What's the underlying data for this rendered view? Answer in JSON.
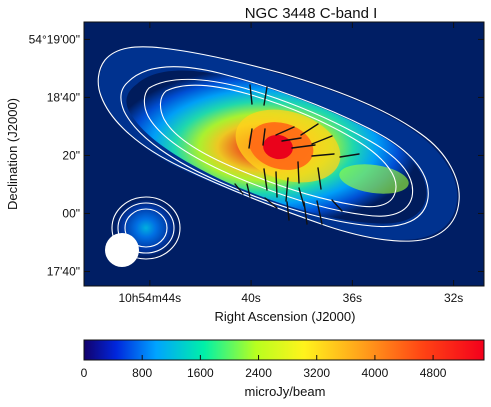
{
  "chart_data": {
    "type": "heatmap",
    "title": "NGC 3448   C-band   I",
    "xlabel": "Right Ascension (J2000)",
    "ylabel": "Declination (J2000)",
    "x_ticks": [
      {
        "label": "10h54m44s",
        "value": 44
      },
      {
        "label": "40s",
        "value": 40
      },
      {
        "label": "36s",
        "value": 36
      },
      {
        "label": "32s",
        "value": 32
      }
    ],
    "y_ticks": [
      {
        "label": "54°19'00\"",
        "value": 60
      },
      {
        "label": "18'40\"",
        "value": 40
      },
      {
        "label": "20\"",
        "value": 20
      },
      {
        "label": "00\"",
        "value": 0
      },
      {
        "label": "17'40\"",
        "value": -20
      }
    ],
    "xlim": [
      46.6,
      30.8
    ],
    "ylim": [
      -25,
      66
    ],
    "colorbar": {
      "label": "microJy/beam",
      "min": 0,
      "max": 5500,
      "ticks": [
        {
          "label": "0",
          "value": 0
        },
        {
          "label": "800",
          "value": 800
        },
        {
          "label": "1600",
          "value": 1600
        },
        {
          "label": "2400",
          "value": 2400
        },
        {
          "label": "3200",
          "value": 3200
        },
        {
          "label": "4000",
          "value": 4000
        },
        {
          "label": "4800",
          "value": 4800
        }
      ]
    },
    "peak": {
      "ra_s": 39.0,
      "dec_arcsec": 21,
      "value": 5400
    },
    "contours": [
      {
        "level": "outer",
        "value": 200
      },
      {
        "level": "second",
        "value": 600
      },
      {
        "level": "third",
        "value": 1100
      },
      {
        "level": "inner",
        "value": 1600
      }
    ],
    "beam": {
      "label": "beam ellipse",
      "ra_s": 44.9,
      "dec_arcsec": -14
    }
  }
}
